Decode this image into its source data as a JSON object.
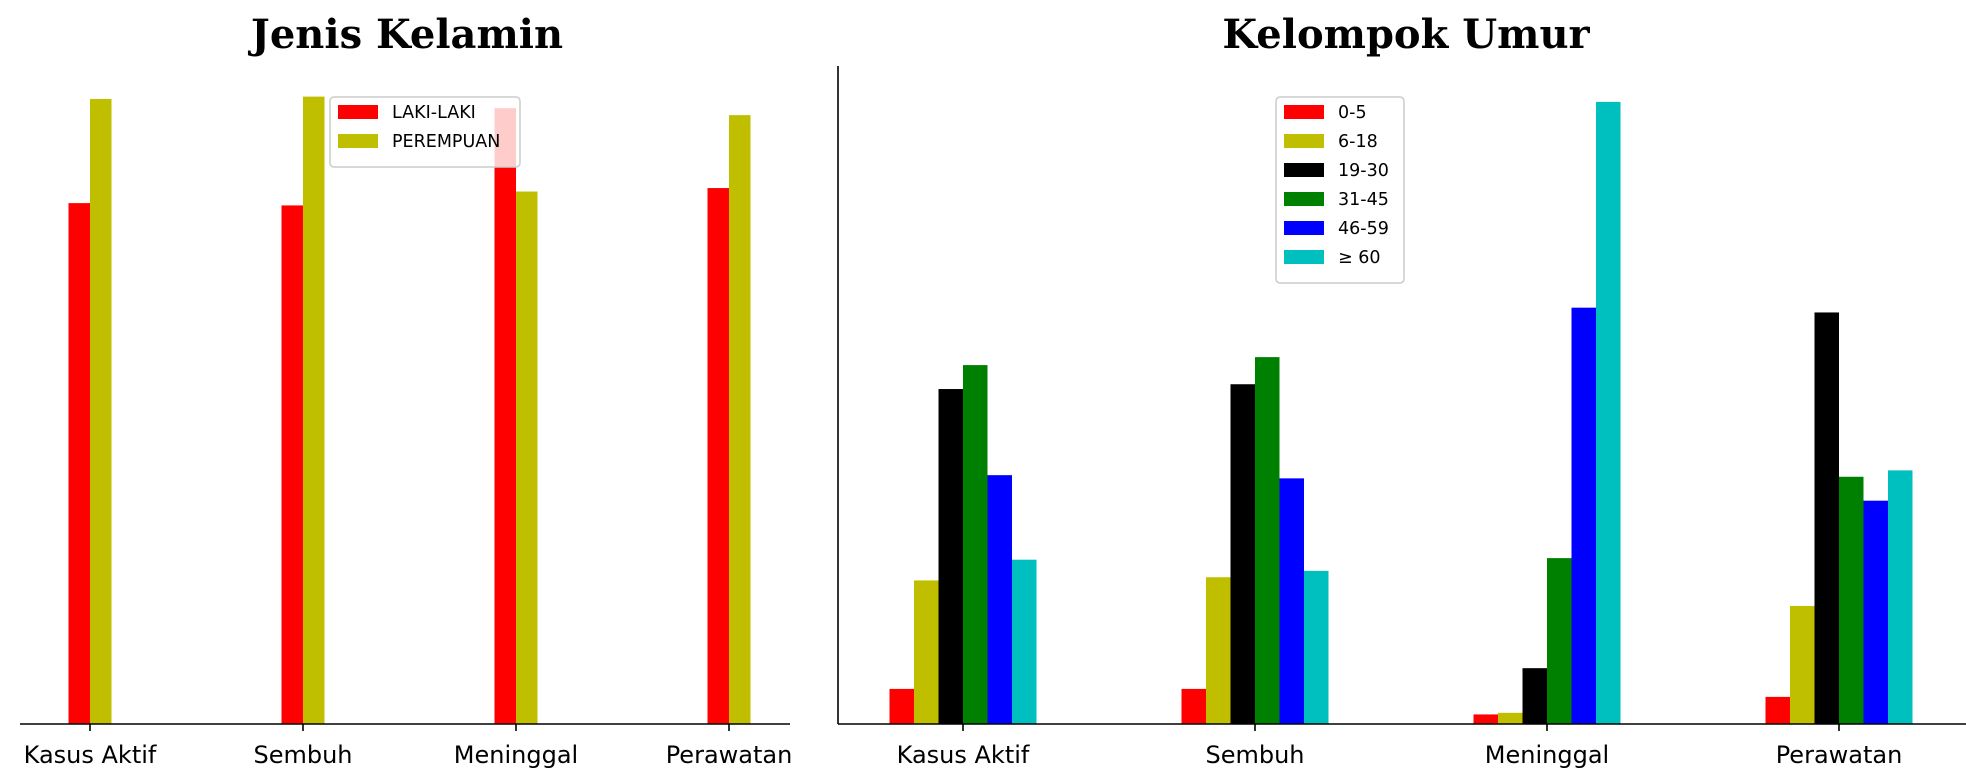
{
  "chart_data": [
    {
      "type": "bar",
      "title": "Jenis Kelamin",
      "categories": [
        "Kasus Aktif",
        "Sembuh",
        "Meninggal",
        "Perawatan"
      ],
      "series": [
        {
          "name": "LAKI-LAKI",
          "color": "#ff0000",
          "values": [
            45.0,
            44.8,
            53.2,
            46.3
          ]
        },
        {
          "name": "PEREMPUAN",
          "color": "#bfbf00",
          "values": [
            54.0,
            54.2,
            46.0,
            52.6
          ]
        }
      ],
      "ylim": [
        0,
        56.5
      ],
      "axes": {
        "left": false,
        "top": false,
        "right": false,
        "bottom": true
      },
      "legend": "top-center"
    },
    {
      "type": "bar",
      "title": "Kelompok Umur",
      "categories": [
        "Kasus Aktif",
        "Sembuh",
        "Meninggal",
        "Perawatan"
      ],
      "series": [
        {
          "name": "0-5",
          "color": "#ff0000",
          "values": [
            2.2,
            2.2,
            0.6,
            1.7
          ]
        },
        {
          "name": "6-18",
          "color": "#bfbf00",
          "values": [
            9.0,
            9.2,
            0.7,
            7.4
          ]
        },
        {
          "name": "19-30",
          "color": "#000000",
          "values": [
            21.0,
            21.3,
            3.5,
            25.8
          ]
        },
        {
          "name": "31-45",
          "color": "#008000",
          "values": [
            22.5,
            23.0,
            10.4,
            15.5
          ]
        },
        {
          "name": "46-59",
          "color": "#0000ff",
          "values": [
            15.6,
            15.4,
            26.1,
            14.0
          ]
        },
        {
          "name": "≥ 60",
          "color": "#00bfbf",
          "values": [
            10.3,
            9.6,
            39.0,
            15.9
          ]
        }
      ],
      "ylim": [
        0,
        41.0
      ],
      "axes": {
        "left": true,
        "top": false,
        "right": false,
        "bottom": true
      },
      "legend": "top-center"
    }
  ]
}
